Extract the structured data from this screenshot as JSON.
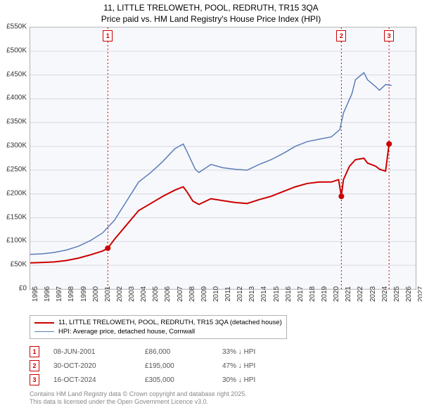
{
  "title": {
    "line1": "11, LITTLE TRELOWETH, POOL, REDRUTH, TR15 3QA",
    "line2": "Price paid vs. HM Land Registry's House Price Index (HPI)"
  },
  "chart": {
    "type": "line",
    "background_color": "#f7f8fc",
    "grid_color": "#d8d8e0",
    "border_color": "#b0b0b0",
    "xlim": [
      1995,
      2027
    ],
    "ylim": [
      0,
      550
    ],
    "y_ticks": [
      0,
      50,
      100,
      150,
      200,
      250,
      300,
      350,
      400,
      450,
      500,
      550
    ],
    "y_tick_labels": [
      "£0",
      "£50K",
      "£100K",
      "£150K",
      "£200K",
      "£250K",
      "£300K",
      "£350K",
      "£400K",
      "£450K",
      "£500K",
      "£550K"
    ],
    "x_ticks": [
      1995,
      1996,
      1997,
      1998,
      1999,
      2000,
      2001,
      2002,
      2003,
      2004,
      2005,
      2006,
      2007,
      2008,
      2009,
      2010,
      2011,
      2012,
      2013,
      2014,
      2015,
      2016,
      2017,
      2018,
      2019,
      2020,
      2021,
      2022,
      2023,
      2024,
      2025,
      2026,
      2027
    ],
    "series": {
      "price_paid": {
        "color": "#cc0000",
        "width": 2,
        "label": "11, LITTLE TRELOWETH, POOL, REDRUTH, TR15 3QA (detached house)",
        "data": [
          [
            1995,
            55
          ],
          [
            1996,
            56
          ],
          [
            1997,
            57
          ],
          [
            1998,
            60
          ],
          [
            1999,
            65
          ],
          [
            2000,
            72
          ],
          [
            2001,
            80
          ],
          [
            2001.44,
            86
          ],
          [
            2002,
            105
          ],
          [
            2003,
            135
          ],
          [
            2004,
            165
          ],
          [
            2005,
            180
          ],
          [
            2006,
            195
          ],
          [
            2007,
            208
          ],
          [
            2007.7,
            215
          ],
          [
            2008,
            205
          ],
          [
            2008.5,
            185
          ],
          [
            2009,
            178
          ],
          [
            2010,
            190
          ],
          [
            2011,
            186
          ],
          [
            2012,
            182
          ],
          [
            2013,
            180
          ],
          [
            2014,
            188
          ],
          [
            2015,
            195
          ],
          [
            2016,
            205
          ],
          [
            2017,
            215
          ],
          [
            2018,
            222
          ],
          [
            2019,
            225
          ],
          [
            2020,
            225
          ],
          [
            2020.6,
            230
          ],
          [
            2020.83,
            195
          ],
          [
            2021,
            230
          ],
          [
            2021.5,
            258
          ],
          [
            2022,
            272
          ],
          [
            2022.7,
            275
          ],
          [
            2023,
            265
          ],
          [
            2023.7,
            258
          ],
          [
            2024,
            252
          ],
          [
            2024.5,
            248
          ],
          [
            2024.79,
            305
          ],
          [
            2025,
            308
          ]
        ]
      },
      "hpi": {
        "color": "#5b7db8",
        "width": 1.5,
        "label": "HPI: Average price, detached house, Cornwall",
        "data": [
          [
            1995,
            73
          ],
          [
            1996,
            74
          ],
          [
            1997,
            77
          ],
          [
            1998,
            82
          ],
          [
            1999,
            90
          ],
          [
            2000,
            102
          ],
          [
            2001,
            118
          ],
          [
            2002,
            145
          ],
          [
            2003,
            185
          ],
          [
            2004,
            225
          ],
          [
            2005,
            245
          ],
          [
            2006,
            268
          ],
          [
            2007,
            295
          ],
          [
            2007.7,
            305
          ],
          [
            2008,
            290
          ],
          [
            2008.7,
            252
          ],
          [
            2009,
            245
          ],
          [
            2010,
            262
          ],
          [
            2011,
            255
          ],
          [
            2012,
            252
          ],
          [
            2013,
            250
          ],
          [
            2014,
            262
          ],
          [
            2015,
            272
          ],
          [
            2016,
            285
          ],
          [
            2017,
            300
          ],
          [
            2018,
            310
          ],
          [
            2019,
            315
          ],
          [
            2020,
            320
          ],
          [
            2020.7,
            335
          ],
          [
            2021,
            370
          ],
          [
            2021.7,
            410
          ],
          [
            2022,
            440
          ],
          [
            2022.7,
            455
          ],
          [
            2023,
            440
          ],
          [
            2023.7,
            425
          ],
          [
            2024,
            418
          ],
          [
            2024.5,
            430
          ],
          [
            2025,
            428
          ]
        ]
      }
    },
    "sale_markers": [
      {
        "n": "1",
        "x": 2001.44,
        "y": 86,
        "date": "08-JUN-2001",
        "price": "£86,000",
        "diff": "33% ↓ HPI"
      },
      {
        "n": "2",
        "x": 2020.83,
        "y": 195,
        "date": "30-OCT-2020",
        "price": "£195,000",
        "diff": "47% ↓ HPI"
      },
      {
        "n": "3",
        "x": 2024.79,
        "y": 305,
        "date": "16-OCT-2024",
        "price": "£305,000",
        "diff": "30% ↓ HPI"
      }
    ],
    "vline_color": "#cc0000"
  },
  "legend": {
    "title": null
  },
  "footer": {
    "line1": "Contains HM Land Registry data © Crown copyright and database right 2025.",
    "line2": "This data is licensed under the Open Government Licence v3.0."
  },
  "fonts": {
    "title_size": 12,
    "axis_size": 10,
    "legend_size": 9.5,
    "footer_size": 9
  }
}
